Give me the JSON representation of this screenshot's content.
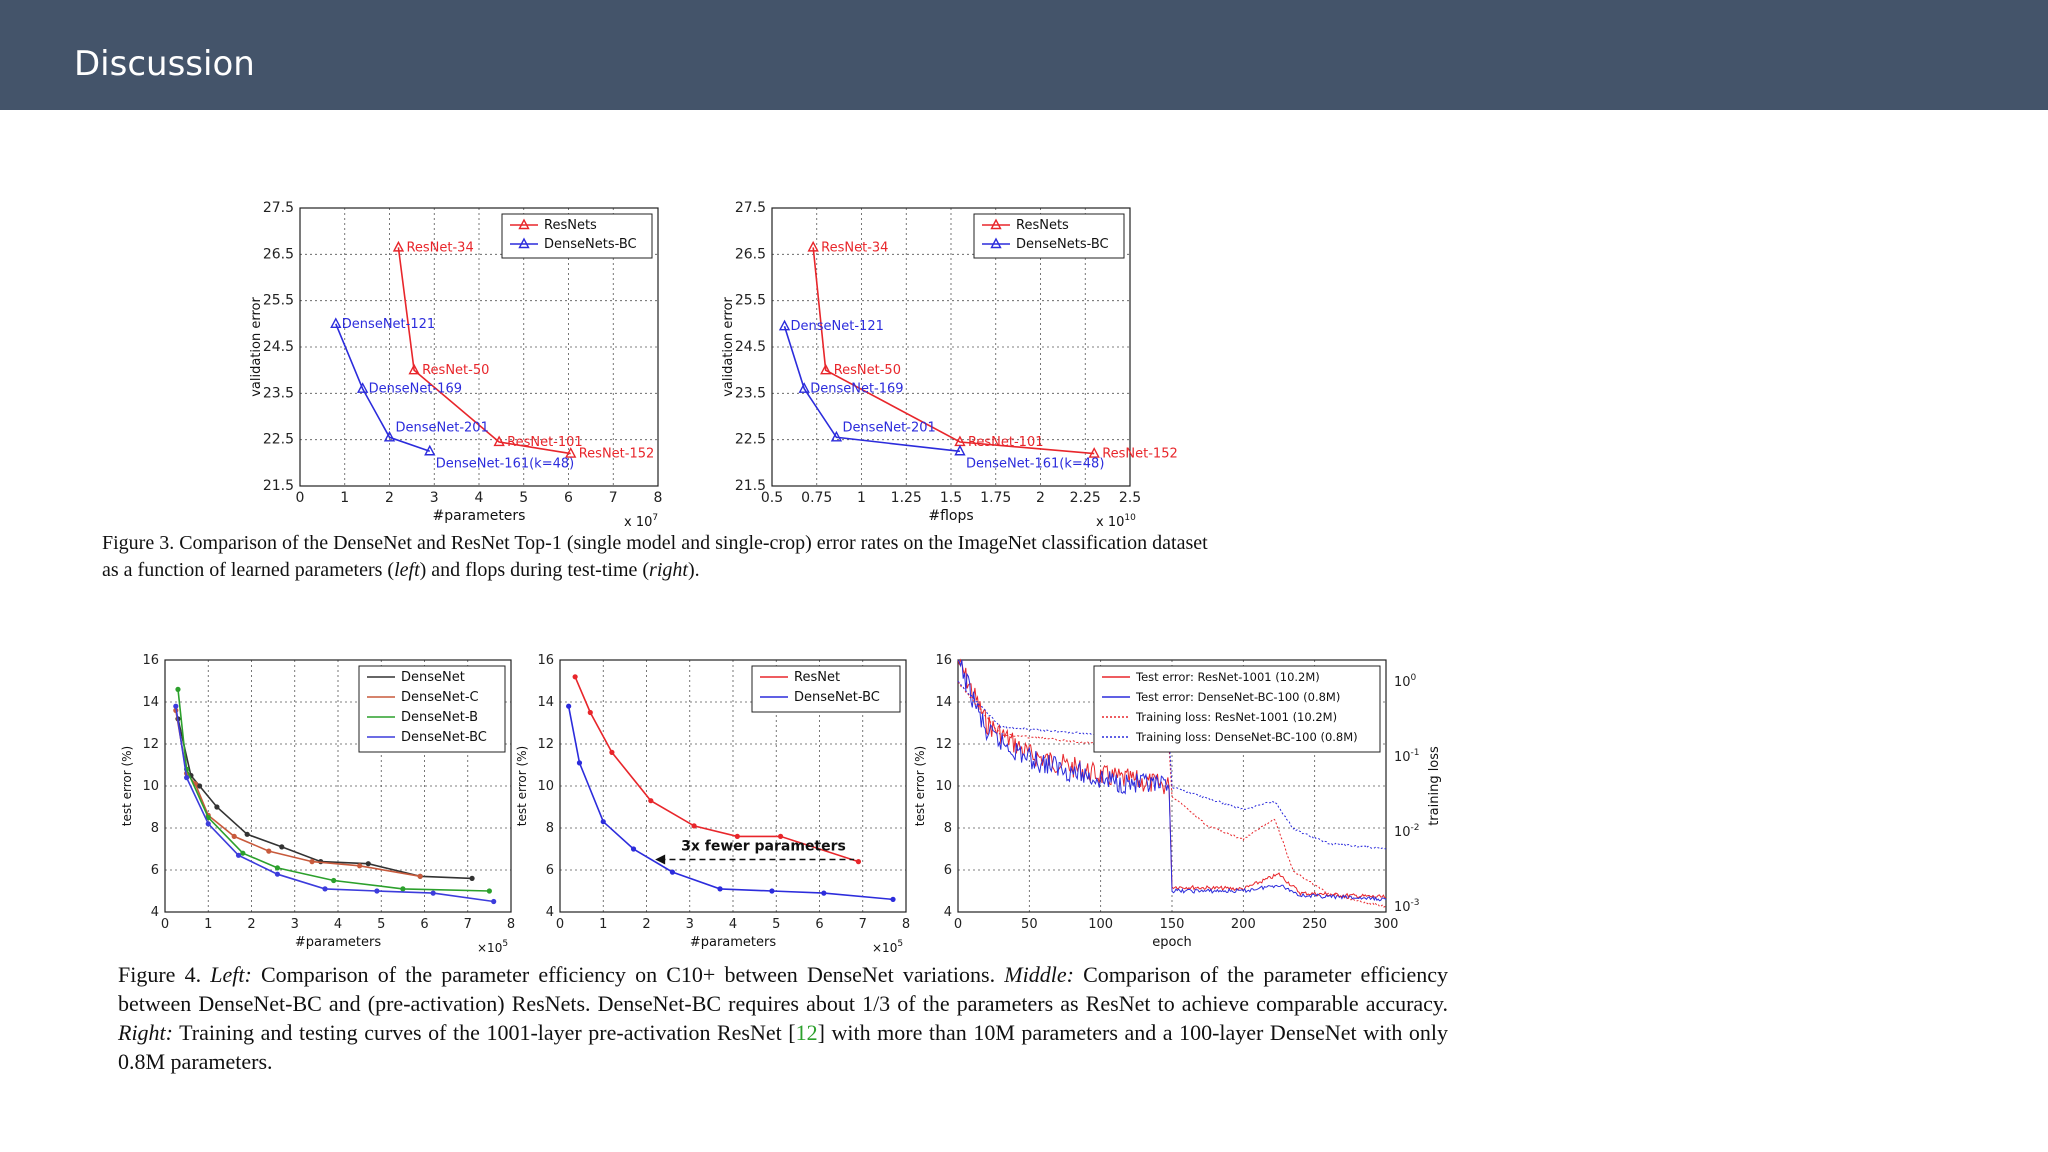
{
  "header": {
    "title": "Discussion"
  },
  "colors": {
    "header_bg": "#44546a",
    "resnet": "#e8262b",
    "densenet": "#2c2cdc",
    "densenet_plain": "#333333",
    "densenet_c": "#c85a3c",
    "densenet_b": "#2ca02c",
    "densenet_bc": "#3c3cdc"
  },
  "fig3_caption": {
    "l1": "Figure 3. Comparison of the DenseNet and ResNet Top-1 (single model and single-crop) error rates on the ImageNet classification dataset",
    "l2a": "as a function of learned parameters (",
    "l2b": "left",
    "l2c": ") and flops during test-time (",
    "l2d": "right",
    "l2e": ")."
  },
  "fig4_caption": {
    "a": "Figure 4. ",
    "b": "Left:",
    "c": " Comparison of the parameter efficiency on C10+ between DenseNet variations. ",
    "d": "Middle:",
    "e": " Comparison of the parameter efficiency between DenseNet-BC and (pre-activation) ResNets. DenseNet-BC requires about 1/3 of the parameters as ResNet to achieve comparable accuracy. ",
    "f": "Right:",
    "g": " Training and testing curves of the 1001-layer pre-activation ResNet [",
    "h": "12",
    "i": "] with more than 10M parameters and a 100-layer DenseNet with only 0.8M parameters."
  },
  "chart_data": [
    {
      "id": "fig3-left",
      "type": "line",
      "xlabel": "#parameters",
      "x_multiplier": "x 10^7",
      "ylabel": "validation error",
      "xlim": [
        0,
        8
      ],
      "ylim": [
        21.5,
        27.5
      ],
      "xticks": [
        "0",
        "1",
        "2",
        "3",
        "4",
        "5",
        "6",
        "7",
        "8"
      ],
      "yticks": [
        "21.5",
        "22.5",
        "23.5",
        "24.5",
        "25.5",
        "26.5",
        "27.5"
      ],
      "legend": [
        "ResNets",
        "DenseNets-BC"
      ],
      "legend_position": "top-right",
      "grid": true,
      "series": [
        {
          "name": "ResNets",
          "color": "#e8262b",
          "points": [
            [
              2.2,
              26.65
            ],
            [
              2.55,
              24.0
            ],
            [
              4.45,
              22.45
            ],
            [
              6.05,
              22.2
            ]
          ],
          "labels": [
            "ResNet-34",
            "ResNet-50",
            "ResNet-101",
            "ResNet-152"
          ]
        },
        {
          "name": "DenseNets-BC",
          "color": "#2c2cdc",
          "points": [
            [
              0.8,
              25.0
            ],
            [
              1.4,
              23.6
            ],
            [
              2.0,
              22.55
            ],
            [
              2.9,
              22.25
            ]
          ],
          "labels": [
            "DenseNet-121",
            "DenseNet-169",
            "DenseNet-201",
            "DenseNet-161(k=48)"
          ]
        }
      ]
    },
    {
      "id": "fig3-right",
      "type": "line",
      "xlabel": "#flops",
      "x_multiplier": "x 10^10",
      "ylabel": "validation error",
      "xlim": [
        0.5,
        2.5
      ],
      "ylim": [
        21.5,
        27.5
      ],
      "xticks": [
        "0.5",
        "0.75",
        "1",
        "1.25",
        "1.5",
        "1.75",
        "2",
        "2.25",
        "2.5"
      ],
      "yticks": [
        "21.5",
        "22.5",
        "23.5",
        "24.5",
        "25.5",
        "26.5",
        "27.5"
      ],
      "legend": [
        "ResNets",
        "DenseNets-BC"
      ],
      "legend_position": "top-right",
      "grid": true,
      "series": [
        {
          "name": "ResNets",
          "color": "#e8262b",
          "points": [
            [
              0.73,
              26.65
            ],
            [
              0.8,
              24.0
            ],
            [
              1.55,
              22.45
            ],
            [
              2.3,
              22.2
            ]
          ],
          "labels": [
            "ResNet-34",
            "ResNet-50",
            "ResNet-101",
            "ResNet-152"
          ]
        },
        {
          "name": "DenseNets-BC",
          "color": "#2c2cdc",
          "points": [
            [
              0.57,
              24.95
            ],
            [
              0.68,
              23.6
            ],
            [
              0.86,
              22.55
            ],
            [
              1.55,
              22.25
            ]
          ],
          "labels": [
            "DenseNet-121",
            "DenseNet-169",
            "DenseNet-201",
            "DenseNet-161(k=48)"
          ]
        }
      ]
    },
    {
      "id": "fig4-left",
      "type": "line",
      "xlabel": "#parameters",
      "x_multiplier": "×10^5",
      "ylabel": "test error (%)",
      "xlim": [
        0,
        8
      ],
      "ylim": [
        4,
        16
      ],
      "xticks": [
        "0",
        "1",
        "2",
        "3",
        "4",
        "5",
        "6",
        "7",
        "8"
      ],
      "yticks": [
        "4",
        "6",
        "8",
        "10",
        "12",
        "14",
        "16"
      ],
      "legend": [
        "DenseNet",
        "DenseNet-C",
        "DenseNet-B",
        "DenseNet-BC"
      ],
      "legend_position": "top-right",
      "grid": true,
      "series": [
        {
          "name": "DenseNet",
          "color": "#333333",
          "points": [
            [
              0.3,
              13.2
            ],
            [
              0.6,
              10.5
            ],
            [
              0.8,
              10.0
            ],
            [
              1.2,
              9.0
            ],
            [
              1.9,
              7.7
            ],
            [
              2.7,
              7.1
            ],
            [
              3.6,
              6.4
            ],
            [
              4.7,
              6.3
            ],
            [
              5.9,
              5.7
            ],
            [
              7.1,
              5.6
            ]
          ]
        },
        {
          "name": "DenseNet-C",
          "color": "#c85a3c",
          "points": [
            [
              0.25,
              13.6
            ],
            [
              0.5,
              10.6
            ],
            [
              0.7,
              10.1
            ],
            [
              1.0,
              8.6
            ],
            [
              1.6,
              7.6
            ],
            [
              2.4,
              6.9
            ],
            [
              3.4,
              6.4
            ],
            [
              4.5,
              6.2
            ],
            [
              5.9,
              5.7
            ]
          ]
        },
        {
          "name": "DenseNet-B",
          "color": "#2ca02c",
          "points": [
            [
              0.3,
              14.6
            ],
            [
              0.5,
              10.8
            ],
            [
              1.0,
              8.5
            ],
            [
              1.8,
              6.8
            ],
            [
              2.6,
              6.1
            ],
            [
              3.9,
              5.5
            ],
            [
              5.5,
              5.1
            ],
            [
              7.5,
              5.0
            ]
          ]
        },
        {
          "name": "DenseNet-BC",
          "color": "#3c3cdc",
          "points": [
            [
              0.25,
              13.8
            ],
            [
              0.5,
              10.4
            ],
            [
              1.0,
              8.2
            ],
            [
              1.7,
              6.7
            ],
            [
              2.6,
              5.8
            ],
            [
              3.7,
              5.1
            ],
            [
              4.9,
              5.0
            ],
            [
              6.2,
              4.9
            ],
            [
              7.6,
              4.5
            ]
          ]
        }
      ]
    },
    {
      "id": "fig4-middle",
      "type": "line",
      "xlabel": "#parameters",
      "x_multiplier": "×10^5",
      "ylabel": "test error (%)",
      "xlim": [
        0,
        8
      ],
      "ylim": [
        4,
        16
      ],
      "xticks": [
        "0",
        "1",
        "2",
        "3",
        "4",
        "5",
        "6",
        "7",
        "8"
      ],
      "yticks": [
        "4",
        "6",
        "8",
        "10",
        "12",
        "14",
        "16"
      ],
      "legend": [
        "ResNet",
        "DenseNet-BC"
      ],
      "legend_position": "top-right",
      "grid": true,
      "annotation": "3x fewer parameters",
      "series": [
        {
          "name": "ResNet",
          "color": "#e8262b",
          "points": [
            [
              0.35,
              15.2
            ],
            [
              0.7,
              13.5
            ],
            [
              1.2,
              11.6
            ],
            [
              2.1,
              9.3
            ],
            [
              3.1,
              8.1
            ],
            [
              4.1,
              7.6
            ],
            [
              5.1,
              7.6
            ],
            [
              6.9,
              6.4
            ]
          ]
        },
        {
          "name": "DenseNet-BC",
          "color": "#2c2cdc",
          "points": [
            [
              0.2,
              13.8
            ],
            [
              0.45,
              11.1
            ],
            [
              1.0,
              8.3
            ],
            [
              1.7,
              7.0
            ],
            [
              2.6,
              5.9
            ],
            [
              3.7,
              5.1
            ],
            [
              4.9,
              5.0
            ],
            [
              6.1,
              4.9
            ],
            [
              7.7,
              4.6
            ]
          ]
        }
      ]
    },
    {
      "id": "fig4-right",
      "type": "line",
      "xlabel": "epoch",
      "ylabel": "test error (%)",
      "ylabel_right": "training loss",
      "xlim": [
        0,
        300
      ],
      "ylim": [
        4,
        16
      ],
      "ylim_right_log": [
        0.001,
        1
      ],
      "xticks": [
        "0",
        "50",
        "100",
        "150",
        "200",
        "250",
        "300"
      ],
      "yticks": [
        "4",
        "6",
        "8",
        "10",
        "12",
        "14",
        "16"
      ],
      "yticks_right": [
        "10^0",
        "10^-1",
        "10^-2",
        "10^-3"
      ],
      "legend": [
        "Test error: ResNet-1001 (10.2M)",
        "Test error: DenseNet-BC-100 (0.8M)",
        "Training loss: ResNet-1001 (10.2M)",
        "Training loss: DenseNet-BC-100 (0.8M)"
      ],
      "legend_position": "top-right",
      "grid": true,
      "series": [
        {
          "name": "Test error: ResNet-1001 (10.2M)",
          "color": "#e8262b",
          "points": [
            [
              0,
              16
            ],
            [
              20,
              13.0
            ],
            [
              50,
              11.5
            ],
            [
              100,
              10.5
            ],
            [
              148,
              10.0
            ],
            [
              150,
              5.2
            ],
            [
              200,
              5.1
            ],
            [
              225,
              5.8
            ],
            [
              240,
              4.9
            ],
            [
              300,
              4.7
            ]
          ]
        },
        {
          "name": "Test error: DenseNet-BC-100 (0.8M)",
          "color": "#2c2cdc",
          "points": [
            [
              0,
              16
            ],
            [
              20,
              12.5
            ],
            [
              50,
              11.3
            ],
            [
              100,
              10.3
            ],
            [
              148,
              9.9
            ],
            [
              150,
              5.0
            ],
            [
              200,
              5.0
            ],
            [
              225,
              5.3
            ],
            [
              240,
              4.8
            ],
            [
              300,
              4.6
            ]
          ]
        },
        {
          "name": "Training loss: ResNet-1001 (10.2M)",
          "color": "#e8262b",
          "style": "dotted",
          "points": [
            [
              0,
              1.0
            ],
            [
              30,
              0.2
            ],
            [
              100,
              0.15
            ],
            [
              148,
              0.13
            ],
            [
              150,
              0.03
            ],
            [
              175,
              0.012
            ],
            [
              200,
              0.008
            ],
            [
              222,
              0.015
            ],
            [
              235,
              0.003
            ],
            [
              260,
              0.0015
            ],
            [
              300,
              0.001
            ]
          ]
        },
        {
          "name": "Training loss: DenseNet-BC-100 (0.8M)",
          "color": "#2c2cdc",
          "style": "dotted",
          "points": [
            [
              0,
              1.0
            ],
            [
              30,
              0.25
            ],
            [
              100,
              0.2
            ],
            [
              148,
              0.18
            ],
            [
              150,
              0.04
            ],
            [
              175,
              0.028
            ],
            [
              200,
              0.02
            ],
            [
              222,
              0.026
            ],
            [
              235,
              0.011
            ],
            [
              260,
              0.007
            ],
            [
              300,
              0.006
            ]
          ]
        }
      ]
    }
  ]
}
